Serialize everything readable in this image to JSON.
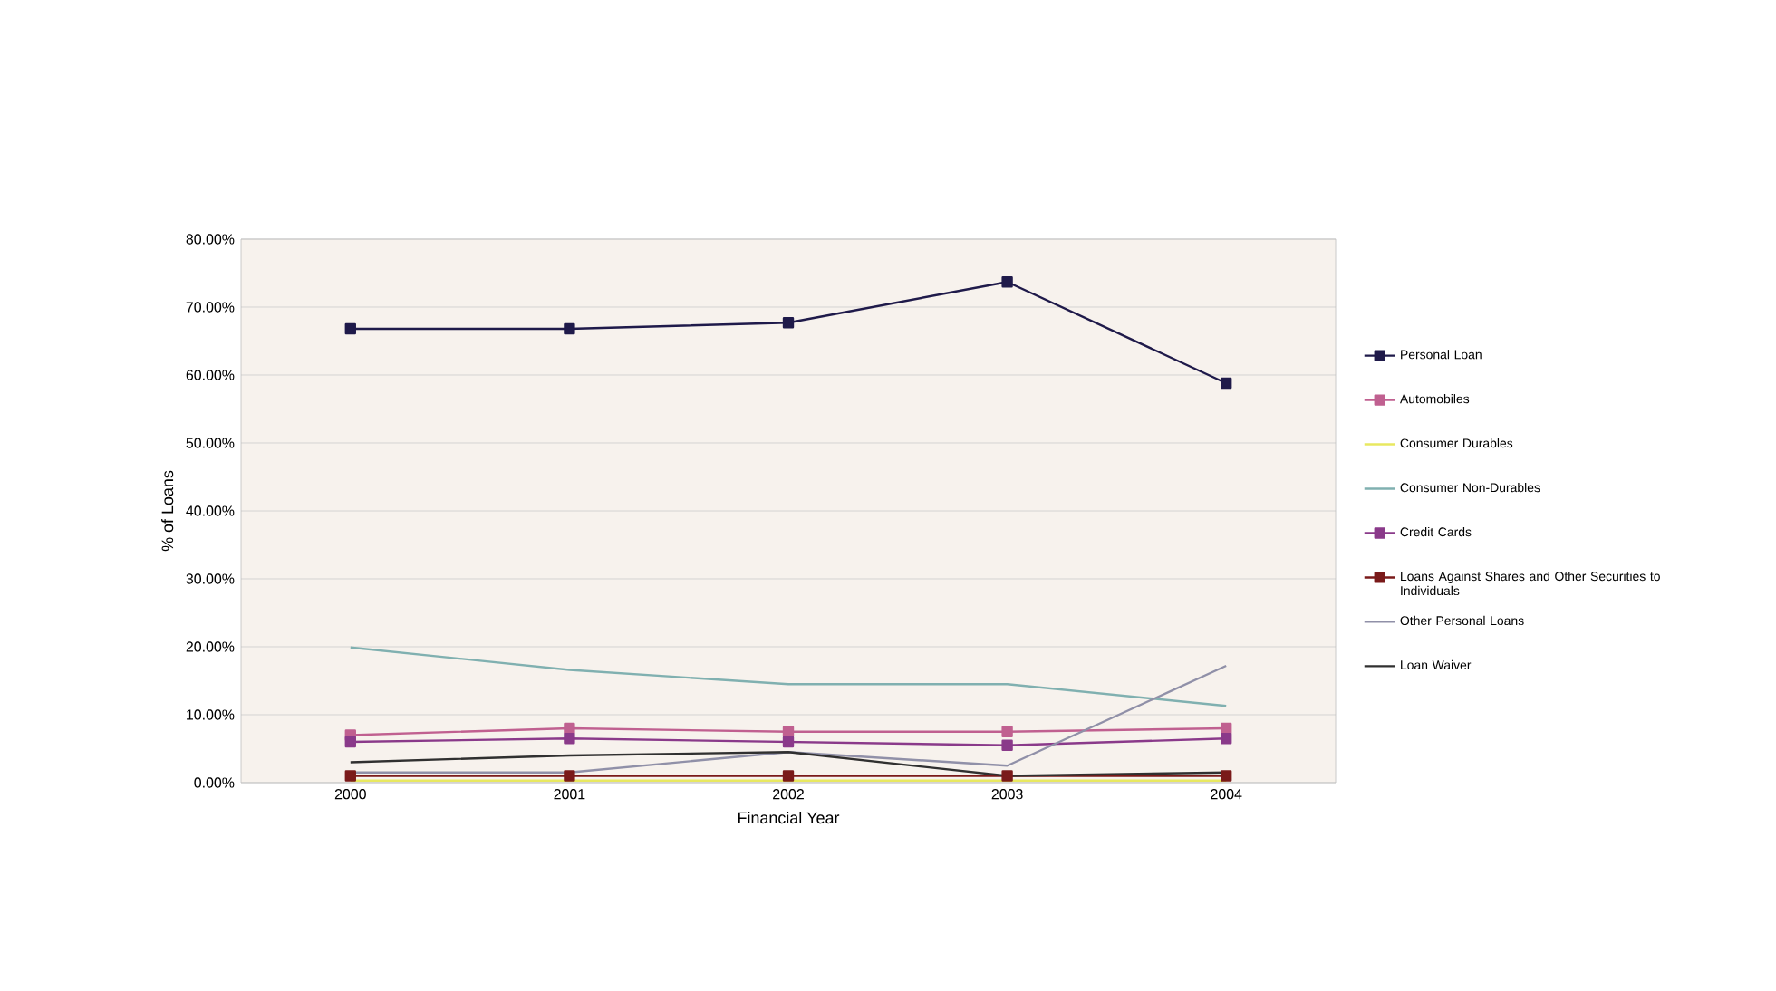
{
  "chart_data": {
    "type": "line",
    "xlabel": "Financial Year",
    "ylabel": "% of Loans",
    "categories": [
      "2000",
      "2001",
      "2002",
      "2003",
      "2004"
    ],
    "series": [
      {
        "name": "Personal Loan",
        "color": "#1f1a4a",
        "marker": "square",
        "values": [
          66.8,
          66.8,
          67.7,
          73.7,
          58.8
        ]
      },
      {
        "name": "Automobiles",
        "color": "#c06090",
        "marker": "square",
        "values": [
          7.0,
          8.0,
          7.5,
          7.5,
          8.0
        ]
      },
      {
        "name": "Consumer Durables",
        "color": "#e8e860",
        "marker": "none",
        "values": [
          0.3,
          0.3,
          0.3,
          0.3,
          0.3
        ]
      },
      {
        "name": "Consumer Non-Durables",
        "color": "#80b0b0",
        "marker": "none",
        "values": [
          19.9,
          16.6,
          14.5,
          14.5,
          11.3
        ]
      },
      {
        "name": "Credit Cards",
        "color": "#8a3a8a",
        "marker": "square",
        "values": [
          6.0,
          6.5,
          6.0,
          5.5,
          6.5
        ]
      },
      {
        "name": "Loans Against Shares and Other Securities to Individuals",
        "color": "#7a1a1a",
        "marker": "square",
        "values": [
          1.0,
          1.0,
          1.0,
          1.0,
          1.0
        ]
      },
      {
        "name": "Other Personal Loans",
        "color": "#9090a8",
        "marker": "none",
        "values": [
          1.5,
          1.5,
          4.5,
          2.5,
          17.2
        ]
      },
      {
        "name": "Loan Waiver",
        "color": "#303030",
        "marker": "none",
        "values": [
          3.0,
          4.0,
          4.5,
          1.0,
          1.5
        ]
      }
    ],
    "ylim": [
      0,
      80
    ],
    "yticks": [
      {
        "value": 0,
        "label": "0.00%"
      },
      {
        "value": 10,
        "label": "10.00%"
      },
      {
        "value": 20,
        "label": "20.00%"
      },
      {
        "value": 30,
        "label": "30.00%"
      },
      {
        "value": 40,
        "label": "40.00%"
      },
      {
        "value": 50,
        "label": "50.00%"
      },
      {
        "value": 60,
        "label": "60.00%"
      },
      {
        "value": 70,
        "label": "70.00%"
      },
      {
        "value": 80,
        "label": "80.00%"
      }
    ],
    "grid": "y",
    "legend": "right"
  }
}
